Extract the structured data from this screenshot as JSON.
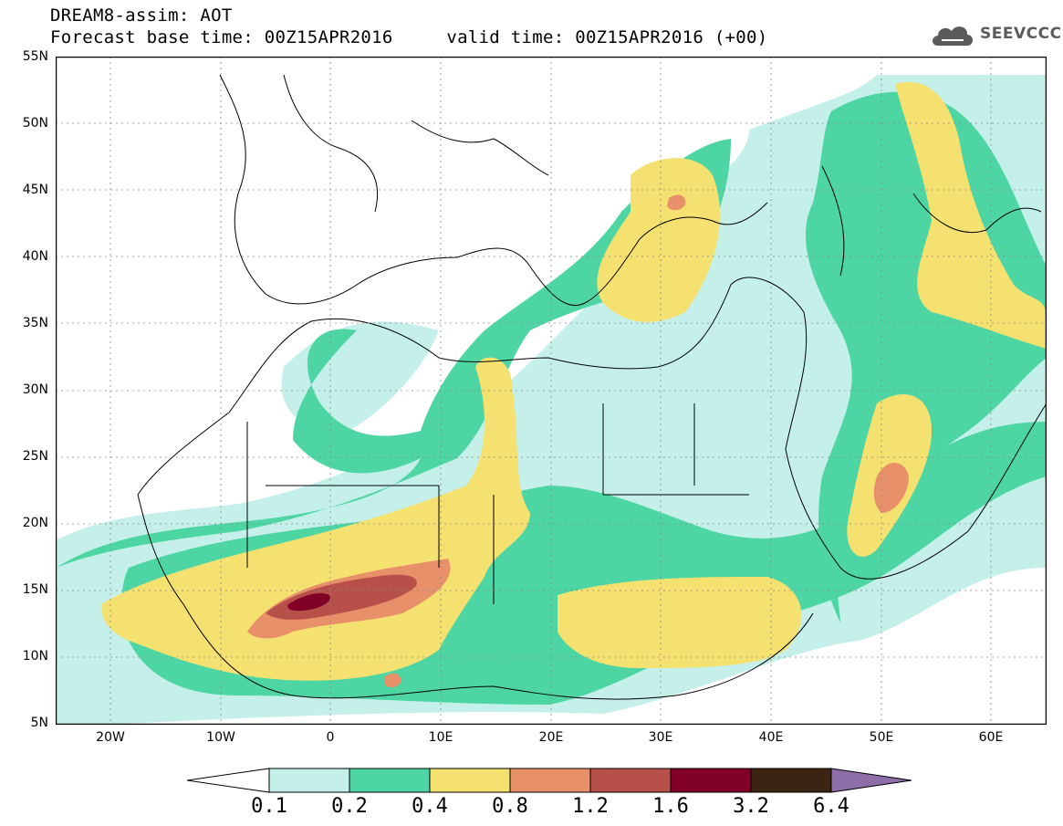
{
  "header": {
    "title": "DREAM8-assim: AOT",
    "subtitle": "Forecast base time: 00Z15APR2016     valid time: 00Z15APR2016 (+00)"
  },
  "logo": {
    "text": "SEEVCCC",
    "icon": "cloud-icon"
  },
  "map": {
    "lat_labels": [
      "55N",
      "50N",
      "45N",
      "40N",
      "35N",
      "30N",
      "25N",
      "20N",
      "15N",
      "10N",
      "5N"
    ],
    "lon_labels": [
      "20W",
      "10W",
      "0",
      "10E",
      "20E",
      "30E",
      "40E",
      "50E",
      "60E"
    ],
    "lat_range": [
      5,
      55
    ],
    "lon_range": [
      -25,
      65
    ],
    "variable": "AOT"
  },
  "legend": {
    "levels": [
      "0.1",
      "0.2",
      "0.4",
      "0.8",
      "1.2",
      "1.6",
      "3.2",
      "6.4"
    ],
    "colors": [
      "#c5f0ea",
      "#4dd6a4",
      "#f5e170",
      "#e8906a",
      "#b8504a",
      "#800028",
      "#3c2412",
      "#8e6ea8"
    ],
    "below_color": "#ffffff"
  }
}
